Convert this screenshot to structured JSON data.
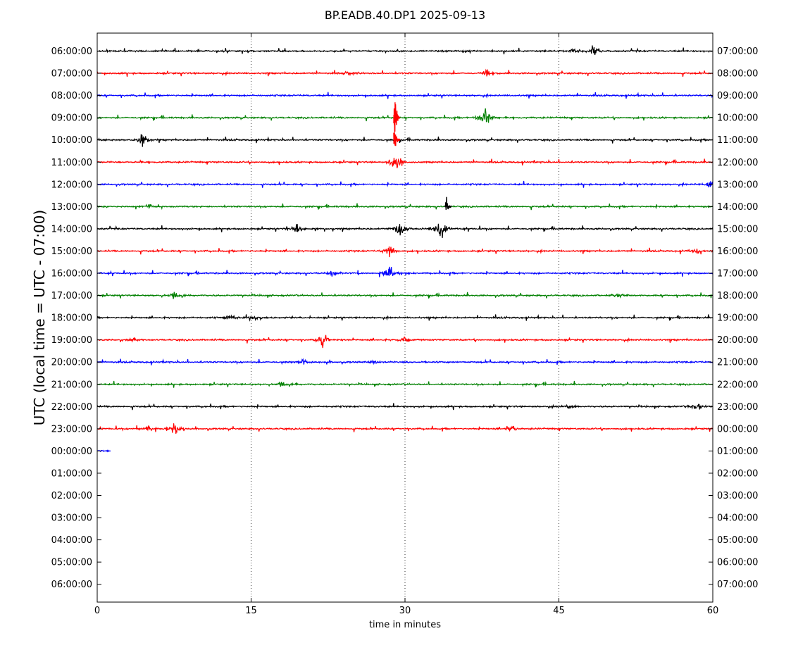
{
  "chart_data": {
    "type": "line",
    "title": "BP.EADB.40.DP1 2025-09-13",
    "xlabel": "time in minutes",
    "ylabel": "UTC (local time = UTC - 07:00)",
    "xlim": [
      0,
      60
    ],
    "x_ticks": [
      "0",
      "15",
      "30",
      "45",
      "60"
    ],
    "x_tick_values": [
      0,
      15,
      30,
      45,
      60
    ],
    "grid": "vertical dotted lines at 15, 30, 45",
    "left_labels": [
      "06:00:00",
      "07:00:00",
      "08:00:00",
      "09:00:00",
      "10:00:00",
      "11:00:00",
      "12:00:00",
      "13:00:00",
      "14:00:00",
      "15:00:00",
      "16:00:00",
      "17:00:00",
      "18:00:00",
      "19:00:00",
      "20:00:00",
      "21:00:00",
      "22:00:00",
      "23:00:00",
      "00:00:00",
      "01:00:00",
      "02:00:00",
      "03:00:00",
      "04:00:00",
      "05:00:00",
      "06:00:00"
    ],
    "right_labels": [
      "07:00:00",
      "08:00:00",
      "09:00:00",
      "10:00:00",
      "11:00:00",
      "12:00:00",
      "13:00:00",
      "14:00:00",
      "15:00:00",
      "16:00:00",
      "17:00:00",
      "18:00:00",
      "19:00:00",
      "20:00:00",
      "21:00:00",
      "22:00:00",
      "23:00:00",
      "00:00:00",
      "01:00:00",
      "02:00:00",
      "03:00:00",
      "04:00:00",
      "05:00:00",
      "06:00:00",
      "07:00:00"
    ],
    "color_cycle": [
      "#000000",
      "#ff0000",
      "#0000ff",
      "#008000"
    ],
    "traces": [
      {
        "row": 0,
        "end_minute": 60,
        "events": [
          {
            "t": 48.5,
            "amp": 1.0
          },
          {
            "t": 46.5,
            "amp": 0.6
          }
        ]
      },
      {
        "row": 1,
        "end_minute": 60,
        "events": [
          {
            "t": 38.0,
            "amp": 0.6
          },
          {
            "t": 24.5,
            "amp": 0.5
          }
        ]
      },
      {
        "row": 2,
        "end_minute": 60,
        "events": []
      },
      {
        "row": 3,
        "end_minute": 60,
        "events": [
          {
            "t": 29.0,
            "amp": 3.5,
            "color": "#ff0000"
          },
          {
            "t": 37.8,
            "amp": 2.2
          }
        ]
      },
      {
        "row": 4,
        "end_minute": 60,
        "events": [
          {
            "t": 29.0,
            "amp": 2.0,
            "color": "#ff0000"
          },
          {
            "t": 4.5,
            "amp": 1.2
          }
        ]
      },
      {
        "row": 5,
        "end_minute": 60,
        "events": [
          {
            "t": 29.0,
            "amp": 1.8
          }
        ]
      },
      {
        "row": 6,
        "end_minute": 60,
        "events": [
          {
            "t": 59.8,
            "amp": 0.6
          }
        ]
      },
      {
        "row": 7,
        "end_minute": 60,
        "events": [
          {
            "t": 34.0,
            "amp": 1.8,
            "color": "#000000"
          },
          {
            "t": 5.0,
            "amp": 0.5
          }
        ]
      },
      {
        "row": 8,
        "end_minute": 60,
        "events": [
          {
            "t": 29.5,
            "amp": 1.5
          },
          {
            "t": 33.5,
            "amp": 2.5
          },
          {
            "t": 19.5,
            "amp": 1.0
          }
        ]
      },
      {
        "row": 9,
        "end_minute": 60,
        "events": [
          {
            "t": 28.5,
            "amp": 1.0
          },
          {
            "t": 58.5,
            "amp": 0.8
          }
        ]
      },
      {
        "row": 10,
        "end_minute": 60,
        "events": [
          {
            "t": 28.5,
            "amp": 1.5
          },
          {
            "t": 23.0,
            "amp": 0.6
          }
        ]
      },
      {
        "row": 11,
        "end_minute": 60,
        "events": [
          {
            "t": 7.5,
            "amp": 0.8
          },
          {
            "t": 51.0,
            "amp": 0.8
          }
        ]
      },
      {
        "row": 12,
        "end_minute": 60,
        "events": [
          {
            "t": 15.5,
            "amp": 0.6
          },
          {
            "t": 13.0,
            "amp": 0.6
          }
        ]
      },
      {
        "row": 13,
        "end_minute": 60,
        "events": [
          {
            "t": 22.0,
            "amp": 1.5
          },
          {
            "t": 30.0,
            "amp": 0.6
          },
          {
            "t": 3.5,
            "amp": 0.5
          }
        ]
      },
      {
        "row": 14,
        "end_minute": 60,
        "events": [
          {
            "t": 20.0,
            "amp": 0.6
          },
          {
            "t": 27.0,
            "amp": 0.4
          }
        ]
      },
      {
        "row": 15,
        "end_minute": 60,
        "events": [
          {
            "t": 18.0,
            "amp": 0.6
          }
        ]
      },
      {
        "row": 16,
        "end_minute": 60,
        "events": [
          {
            "t": 58.5,
            "amp": 1.0
          },
          {
            "t": 46.0,
            "amp": 0.5
          }
        ]
      },
      {
        "row": 17,
        "end_minute": 60,
        "events": [
          {
            "t": 7.5,
            "amp": 1.2
          },
          {
            "t": 5.0,
            "amp": 0.7
          },
          {
            "t": 40.5,
            "amp": 0.6
          }
        ]
      },
      {
        "row": 18,
        "end_minute": 1.3,
        "events": []
      }
    ]
  }
}
